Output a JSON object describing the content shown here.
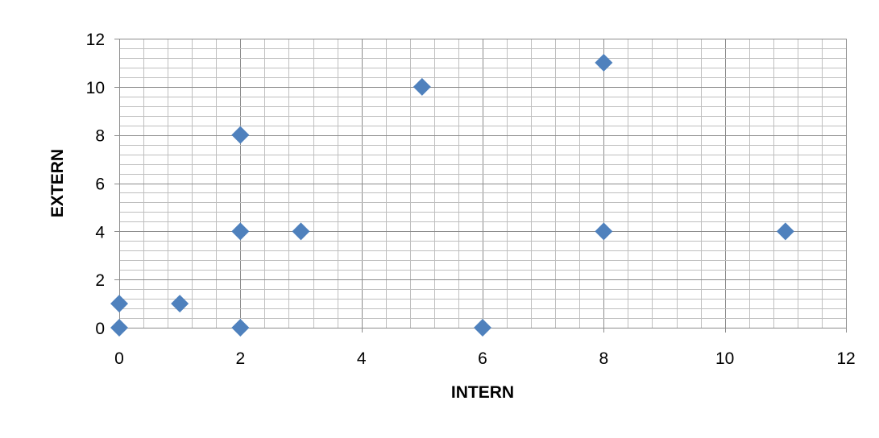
{
  "chart_data": {
    "type": "scatter",
    "title": "",
    "xlabel": "INTERN",
    "ylabel": "EXTERN",
    "xlim": [
      0,
      12
    ],
    "ylim": [
      0,
      12
    ],
    "x_major_step": 2,
    "y_major_step": 2,
    "x_minor_step": 0.4,
    "y_minor_step": 0.4,
    "grid": true,
    "marker": "diamond",
    "marker_color": "#4f81bd",
    "x_ticks": [
      "0",
      "2",
      "4",
      "6",
      "8",
      "10",
      "12"
    ],
    "y_ticks": [
      "0",
      "2",
      "4",
      "6",
      "8",
      "10",
      "12"
    ],
    "series": [
      {
        "points": [
          {
            "x": 0,
            "y": 0
          },
          {
            "x": 0,
            "y": 1
          },
          {
            "x": 1,
            "y": 1
          },
          {
            "x": 2,
            "y": 0
          },
          {
            "x": 2,
            "y": 4
          },
          {
            "x": 2,
            "y": 8
          },
          {
            "x": 3,
            "y": 4
          },
          {
            "x": 5,
            "y": 10
          },
          {
            "x": 6,
            "y": 0
          },
          {
            "x": 8,
            "y": 4
          },
          {
            "x": 8,
            "y": 11
          },
          {
            "x": 11,
            "y": 4
          }
        ]
      }
    ]
  }
}
